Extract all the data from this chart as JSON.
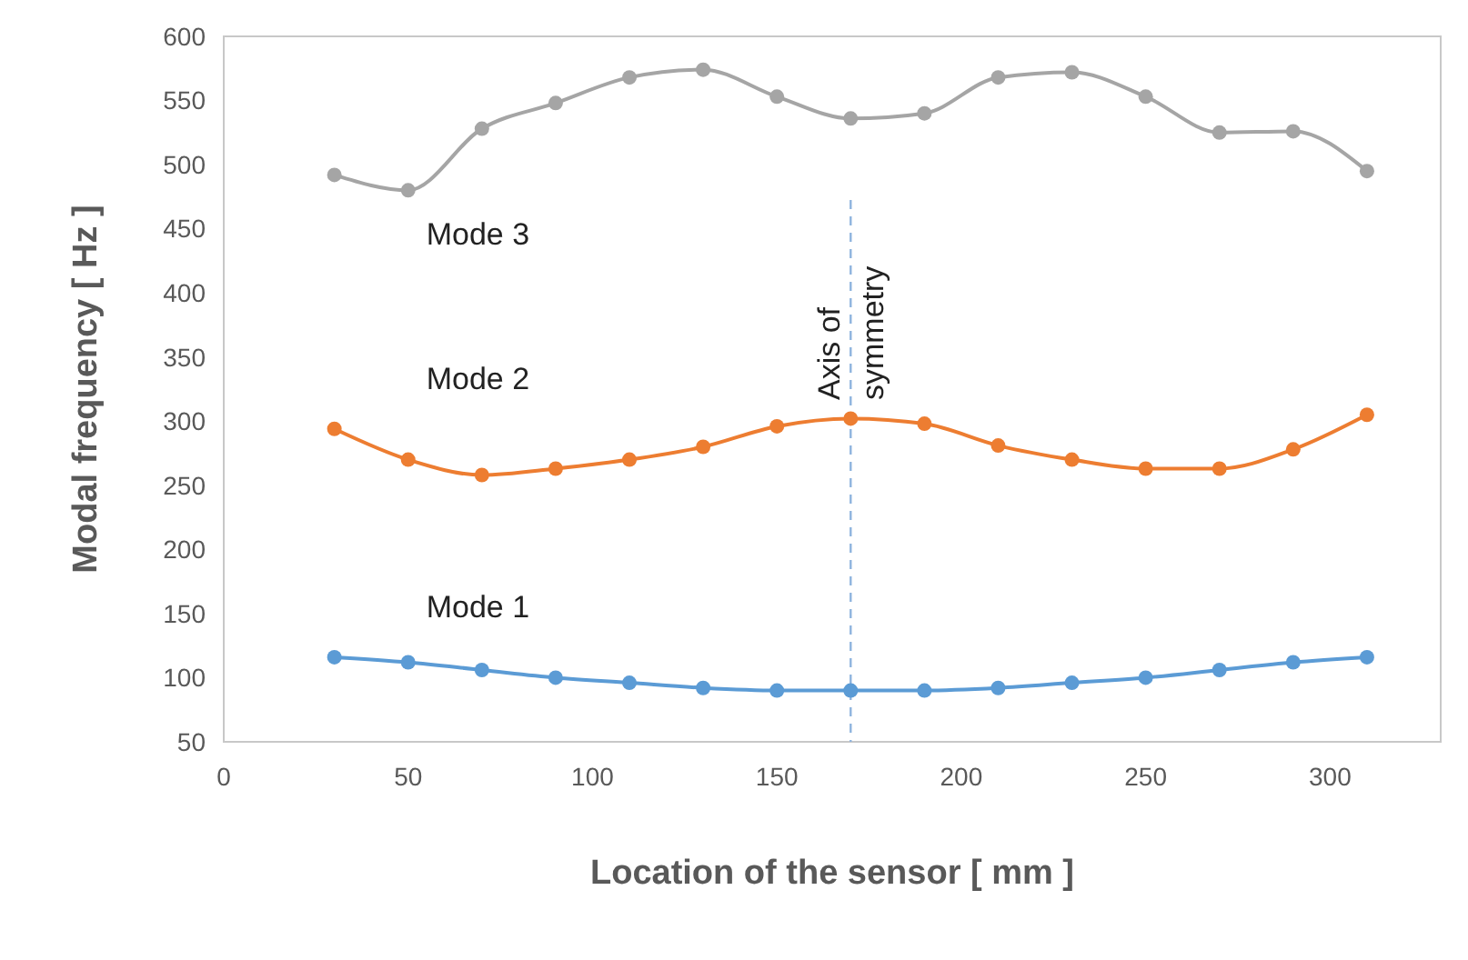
{
  "chart_data": {
    "type": "line",
    "xlabel": "Location of the sensor [ mm ]",
    "ylabel": "Modal frequency [ Hz ]",
    "x": [
      30,
      50,
      70,
      90,
      110,
      130,
      150,
      170,
      190,
      210,
      230,
      250,
      270,
      290,
      310
    ],
    "series": [
      {
        "name": "Mode 1",
        "color": "#5b9bd5",
        "values": [
          116,
          112,
          106,
          100,
          96,
          92,
          90,
          90,
          90,
          92,
          96,
          100,
          106,
          112,
          116
        ]
      },
      {
        "name": "Mode 2",
        "color": "#ed7d31",
        "values": [
          294,
          270,
          258,
          263,
          270,
          280,
          296,
          302,
          298,
          281,
          270,
          263,
          263,
          278,
          305
        ]
      },
      {
        "name": "Mode 3",
        "color": "#a5a5a5",
        "values": [
          492,
          480,
          528,
          548,
          568,
          574,
          553,
          536,
          540,
          568,
          572,
          553,
          525,
          526,
          495
        ]
      }
    ],
    "xlim": [
      0,
      330
    ],
    "xticks": [
      0,
      50,
      100,
      150,
      200,
      250,
      300
    ],
    "ylim": [
      50,
      600
    ],
    "yticks": [
      50,
      100,
      150,
      200,
      250,
      300,
      350,
      400,
      450,
      500,
      550,
      600
    ],
    "ref_lines": [
      {
        "axis": "x",
        "value": 170,
        "label": "Axis of symmetry",
        "color": "#8fb4de",
        "line_style": "dashed"
      }
    ],
    "grid": false,
    "marker": "circle",
    "line_style": "solid"
  }
}
